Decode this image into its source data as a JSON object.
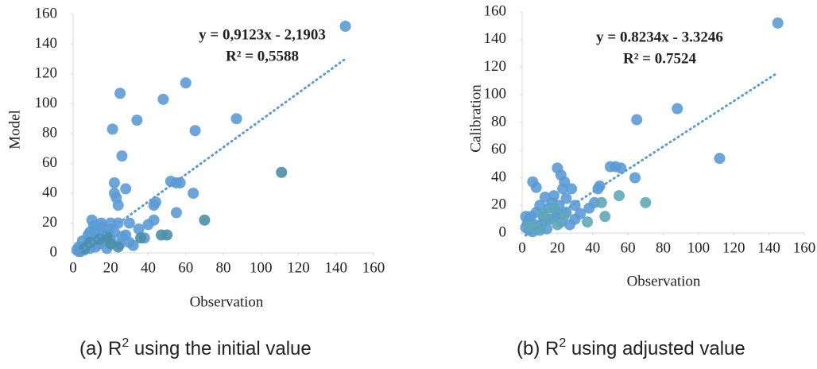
{
  "chart_data": [
    {
      "type": "scatter",
      "y_label": "Model",
      "x_label": "Observation",
      "equation": "y = 0,9123x - 2,1903",
      "r_squared": "R² = 0,5588",
      "trendline": {
        "slope": 0.9123,
        "intercept": -2.1903
      },
      "caption": [
        "(a)  R",
        "2",
        " using the initial value"
      ],
      "xlim": [
        0,
        160
      ],
      "xticks": [
        0,
        20,
        40,
        60,
        80,
        100,
        120,
        140,
        160
      ],
      "ylim": [
        0,
        160
      ],
      "yticks": [
        0,
        20,
        40,
        60,
        80,
        100,
        120,
        140,
        160
      ],
      "series": [
        {
          "color": "#5b9bd5",
          "x": [
            145,
            25,
            60,
            48,
            34,
            21,
            87,
            65,
            26,
            22,
            22,
            23,
            24,
            28,
            52,
            57,
            55,
            64,
            44,
            43,
            55,
            38,
            40,
            43,
            30,
            20,
            15,
            10,
            12,
            8,
            5,
            3,
            2,
            4,
            7,
            10,
            13,
            16,
            18,
            20,
            25,
            30,
            28,
            35,
            32,
            18,
            12,
            6,
            3,
            9,
            14,
            17,
            19,
            22,
            24,
            26,
            15,
            11,
            9
          ],
          "y": [
            152,
            107,
            114,
            103,
            89,
            83,
            90,
            82,
            65,
            47,
            40,
            37,
            32,
            43,
            48,
            47,
            47,
            40,
            34,
            32,
            27,
            10,
            19,
            22,
            20,
            20,
            18,
            22,
            15,
            12,
            8,
            4,
            2,
            1,
            5,
            8,
            10,
            14,
            12,
            9,
            6,
            7,
            12,
            16,
            5,
            3,
            4,
            2,
            1,
            3,
            6,
            8,
            16,
            14,
            20,
            11,
            20,
            18,
            14
          ]
        },
        {
          "color": "#4a8fa8",
          "x": [
            111,
            70,
            50,
            47,
            36,
            20,
            14,
            9,
            6,
            18,
            24
          ],
          "y": [
            54,
            22,
            12,
            12,
            10,
            6,
            9,
            7,
            3,
            11,
            4
          ]
        }
      ]
    },
    {
      "type": "scatter",
      "y_label": "Calibration",
      "x_label": "Observation",
      "equation": "y = 0.8234x - 3.3246",
      "r_squared": "R² = 0.7524",
      "trendline": {
        "slope": 0.8234,
        "intercept": -3.3246
      },
      "caption": [
        "(b) R",
        "2",
        " using adjusted value"
      ],
      "xlim": [
        0,
        160
      ],
      "xticks": [
        0,
        20,
        40,
        60,
        80,
        100,
        120,
        140,
        160
      ],
      "ylim": [
        0,
        160
      ],
      "yticks": [
        0,
        20,
        40,
        60,
        80,
        100,
        120,
        140,
        160
      ],
      "series": [
        {
          "color": "#5b9bd5",
          "x": [
            145,
            88,
            65,
            112,
            53,
            50,
            56,
            20,
            22,
            24,
            23,
            28,
            6,
            8,
            13,
            18,
            44,
            43,
            64,
            38,
            41,
            30,
            25,
            20,
            15,
            10,
            8,
            5,
            3,
            2,
            4,
            6,
            9,
            12,
            16,
            19,
            22,
            27,
            30,
            33,
            14,
            10,
            7,
            4,
            2,
            17,
            21,
            25,
            12
          ],
          "y": [
            152,
            90,
            82,
            54,
            48,
            48,
            47,
            47,
            42,
            37,
            32,
            32,
            37,
            33,
            26,
            27,
            34,
            32,
            40,
            18,
            22,
            20,
            15,
            15,
            18,
            20,
            15,
            12,
            8,
            4,
            2,
            1,
            5,
            8,
            10,
            12,
            8,
            6,
            10,
            14,
            3,
            2,
            6,
            10,
            12,
            22,
            20,
            25,
            12
          ]
        },
        {
          "color": "#5fa8b5",
          "x": [
            45,
            55,
            70,
            47,
            37,
            20,
            15,
            10,
            7,
            4,
            18,
            24,
            12
          ],
          "y": [
            22,
            27,
            22,
            12,
            8,
            6,
            10,
            4,
            3,
            5,
            18,
            13,
            14
          ]
        }
      ]
    }
  ]
}
